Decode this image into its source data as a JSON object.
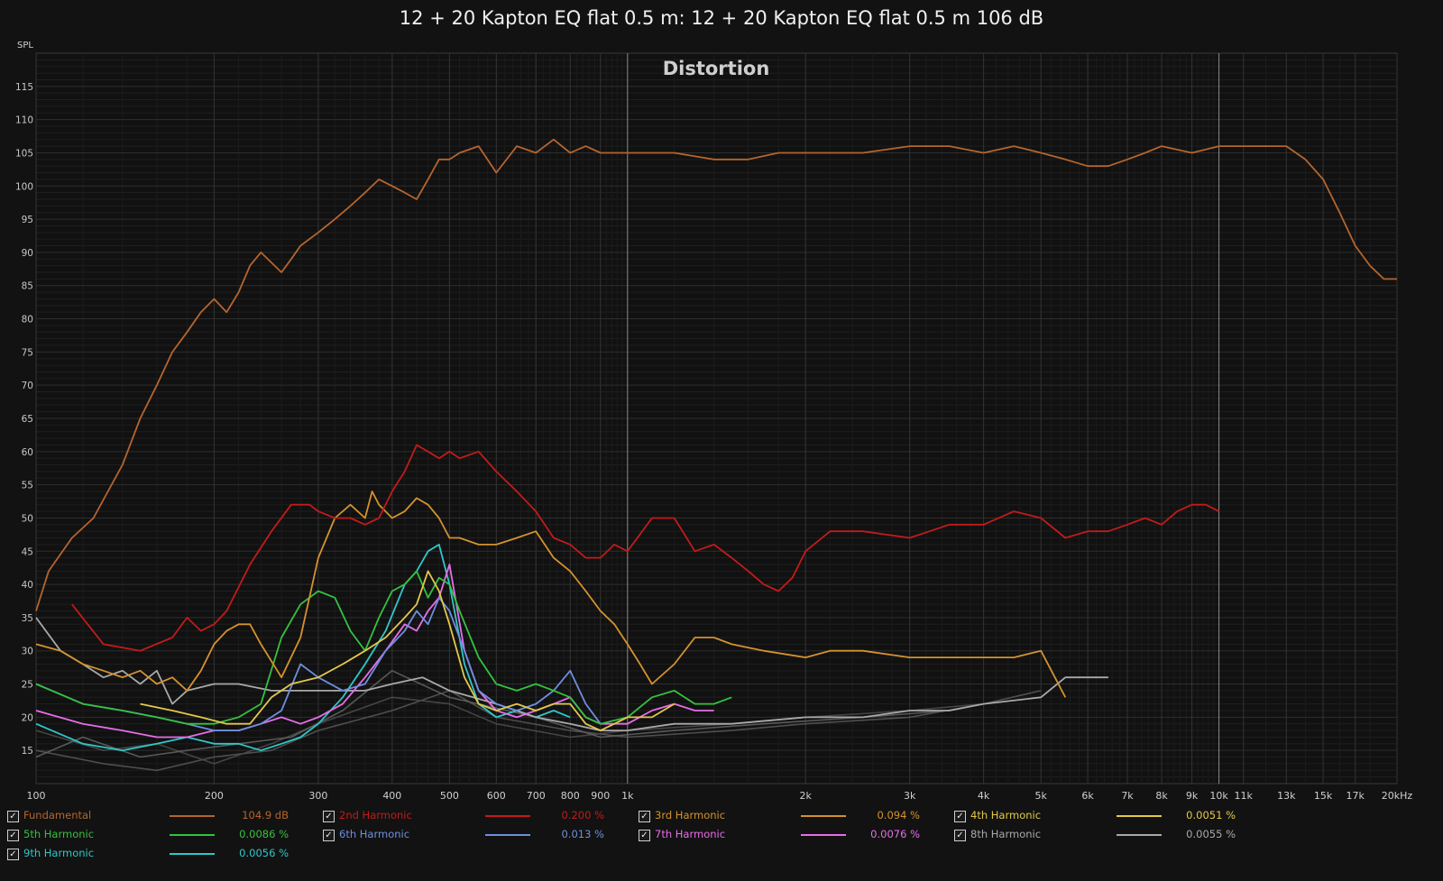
{
  "header": {
    "title": "12 + 20 Kapton EQ flat 0.5 m: 12 + 20 Kapton EQ flat 0.5 m 106 dB"
  },
  "chart_data": {
    "type": "line",
    "title": "Distortion",
    "ylabel": "SPL",
    "x_scale": "log",
    "xlim": [
      100,
      20000
    ],
    "ylim": [
      10,
      120
    ],
    "grid": true,
    "x_ticks": [
      {
        "v": 100,
        "label": "100"
      },
      {
        "v": 200,
        "label": "200"
      },
      {
        "v": 300,
        "label": "300"
      },
      {
        "v": 400,
        "label": "400"
      },
      {
        "v": 500,
        "label": "500"
      },
      {
        "v": 600,
        "label": "600"
      },
      {
        "v": 700,
        "label": "700"
      },
      {
        "v": 800,
        "label": "800"
      },
      {
        "v": 900,
        "label": "900"
      },
      {
        "v": 1000,
        "label": "1k"
      },
      {
        "v": 2000,
        "label": "2k"
      },
      {
        "v": 3000,
        "label": "3k"
      },
      {
        "v": 4000,
        "label": "4k"
      },
      {
        "v": 5000,
        "label": "5k"
      },
      {
        "v": 6000,
        "label": "6k"
      },
      {
        "v": 7000,
        "label": "7k"
      },
      {
        "v": 8000,
        "label": "8k"
      },
      {
        "v": 9000,
        "label": "9k"
      },
      {
        "v": 10000,
        "label": "10k"
      },
      {
        "v": 11000,
        "label": "11k"
      },
      {
        "v": 13000,
        "label": "13k"
      },
      {
        "v": 15000,
        "label": "15k"
      },
      {
        "v": 17000,
        "label": "17k"
      },
      {
        "v": 20000,
        "label": "20kHz"
      }
    ],
    "y_ticks": [
      15,
      20,
      25,
      30,
      35,
      40,
      45,
      50,
      55,
      60,
      65,
      70,
      75,
      80,
      85,
      90,
      95,
      100,
      105,
      110,
      115
    ],
    "series": [
      {
        "name": "Fundamental",
        "color": "#b5652e",
        "value": "104.9 dB",
        "x": [
          100,
          105,
          115,
          125,
          140,
          150,
          160,
          170,
          180,
          190,
          200,
          210,
          220,
          230,
          240,
          260,
          270,
          280,
          300,
          320,
          340,
          360,
          380,
          400,
          420,
          440,
          460,
          480,
          500,
          520,
          560,
          600,
          650,
          700,
          750,
          800,
          850,
          900,
          950,
          1000,
          1100,
          1200,
          1400,
          1600,
          1800,
          2000,
          2200,
          2500,
          3000,
          3500,
          4000,
          4500,
          5000,
          5500,
          6000,
          6500,
          7000,
          7500,
          8000,
          9000,
          10000,
          11000,
          12000,
          13000,
          14000,
          15000,
          16000,
          17000,
          18000,
          19000,
          20000
        ],
        "y": [
          36,
          42,
          47,
          50,
          58,
          65,
          70,
          75,
          78,
          81,
          83,
          81,
          84,
          88,
          90,
          87,
          89,
          91,
          93,
          95,
          97,
          99,
          101,
          100,
          99,
          98,
          101,
          104,
          104,
          105,
          106,
          102,
          106,
          105,
          107,
          105,
          106,
          105,
          105,
          105,
          105,
          105,
          104,
          104,
          105,
          105,
          105,
          105,
          106,
          106,
          105,
          106,
          105,
          104,
          103,
          103,
          104,
          105,
          106,
          105,
          106,
          106,
          106,
          106,
          104,
          101,
          96,
          91,
          88,
          86,
          86
        ]
      },
      {
        "name": "2nd Harmonic",
        "color": "#c21b1b",
        "value": "0.200 %",
        "x": [
          115,
          130,
          150,
          170,
          180,
          190,
          200,
          210,
          230,
          250,
          270,
          290,
          300,
          320,
          340,
          360,
          380,
          400,
          420,
          440,
          460,
          480,
          500,
          520,
          560,
          600,
          650,
          700,
          750,
          800,
          850,
          900,
          950,
          1000,
          1100,
          1200,
          1300,
          1400,
          1500,
          1600,
          1700,
          1800,
          1900,
          2000,
          2200,
          2500,
          3000,
          3500,
          4000,
          4500,
          5000,
          5500,
          6000,
          6500,
          7000,
          7500,
          8000,
          8500,
          9000,
          9500,
          10000
        ],
        "y": [
          37,
          31,
          30,
          32,
          35,
          33,
          34,
          36,
          43,
          48,
          52,
          52,
          51,
          50,
          50,
          49,
          50,
          54,
          57,
          61,
          60,
          59,
          60,
          59,
          60,
          57,
          54,
          51,
          47,
          46,
          44,
          44,
          46,
          45,
          50,
          50,
          45,
          46,
          44,
          42,
          40,
          39,
          41,
          45,
          48,
          48,
          47,
          49,
          49,
          51,
          50,
          47,
          48,
          48,
          49,
          50,
          49,
          51,
          52,
          52,
          51
        ]
      },
      {
        "name": "3rd Harmonic",
        "color": "#d4922e",
        "value": "0.094 %",
        "x": [
          100,
          110,
          120,
          130,
          140,
          150,
          160,
          170,
          180,
          190,
          200,
          210,
          220,
          230,
          240,
          260,
          280,
          300,
          320,
          340,
          360,
          370,
          380,
          400,
          420,
          440,
          460,
          480,
          500,
          520,
          560,
          600,
          650,
          700,
          750,
          800,
          850,
          900,
          950,
          1000,
          1050,
          1100,
          1200,
          1300,
          1400,
          1500,
          1700,
          2000,
          2200,
          2500,
          3000,
          3500,
          4000,
          4500,
          5000,
          5500
        ],
        "y": [
          31,
          30,
          28,
          27,
          26,
          27,
          25,
          26,
          24,
          27,
          31,
          33,
          34,
          34,
          31,
          26,
          32,
          44,
          50,
          52,
          50,
          54,
          52,
          50,
          51,
          53,
          52,
          50,
          47,
          47,
          46,
          46,
          47,
          48,
          44,
          42,
          39,
          36,
          34,
          31,
          28,
          25,
          28,
          32,
          32,
          31,
          30,
          29,
          30,
          30,
          29,
          29,
          29,
          29,
          30,
          23
        ]
      },
      {
        "name": "4th Harmonic",
        "color": "#e3c84a",
        "value": "0.0051 %",
        "x": [
          150,
          170,
          190,
          210,
          230,
          250,
          270,
          300,
          330,
          360,
          390,
          420,
          440,
          460,
          480,
          500,
          530,
          560,
          600,
          650,
          700,
          750,
          800,
          850,
          900,
          950,
          1000,
          1100,
          1200
        ],
        "y": [
          22,
          21,
          20,
          19,
          19,
          23,
          25,
          26,
          28,
          30,
          32,
          35,
          37,
          42,
          39,
          34,
          26,
          22,
          21,
          22,
          21,
          22,
          22,
          19,
          18,
          19,
          20,
          20,
          22
        ]
      },
      {
        "name": "5th Harmonic",
        "color": "#34c23e",
        "value": "0.0086 %",
        "x": [
          100,
          120,
          140,
          160,
          180,
          200,
          220,
          240,
          260,
          280,
          300,
          320,
          340,
          360,
          380,
          400,
          420,
          440,
          460,
          480,
          500,
          520,
          560,
          600,
          650,
          700,
          750,
          800,
          850,
          900,
          1000,
          1100,
          1200,
          1300,
          1400,
          1500
        ],
        "y": [
          25,
          22,
          21,
          20,
          19,
          19,
          20,
          22,
          32,
          37,
          39,
          38,
          33,
          30,
          35,
          39,
          40,
          42,
          38,
          41,
          40,
          36,
          29,
          25,
          24,
          25,
          24,
          23,
          20,
          19,
          20,
          23,
          24,
          22,
          22,
          23
        ]
      },
      {
        "name": "6th Harmonic",
        "color": "#6d8fe0",
        "value": "0.013 %",
        "x": [
          100,
          120,
          140,
          160,
          180,
          200,
          220,
          240,
          260,
          280,
          300,
          330,
          360,
          390,
          420,
          440,
          460,
          480,
          500,
          530,
          560,
          600,
          650,
          700,
          750,
          800,
          850,
          900
        ],
        "y": [
          25,
          22,
          21,
          20,
          19,
          18,
          18,
          19,
          21,
          28,
          26,
          24,
          25,
          30,
          33,
          36,
          34,
          38,
          36,
          30,
          24,
          22,
          21,
          22,
          24,
          27,
          22,
          19
        ]
      },
      {
        "name": "7th Harmonic",
        "color": "#e86de8",
        "value": "0.0076 %",
        "x": [
          100,
          120,
          140,
          160,
          180,
          200,
          220,
          240,
          260,
          280,
          300,
          330,
          360,
          390,
          420,
          440,
          460,
          480,
          500,
          530,
          560,
          600,
          650,
          700,
          750,
          800,
          850,
          900,
          1000,
          1100,
          1200,
          1300,
          1400
        ],
        "y": [
          21,
          19,
          18,
          17,
          17,
          18,
          18,
          19,
          20,
          19,
          20,
          22,
          26,
          30,
          34,
          33,
          36,
          38,
          43,
          30,
          24,
          21,
          20,
          21,
          22,
          23,
          20,
          19,
          19,
          21,
          22,
          21,
          21
        ]
      },
      {
        "name": "8th Harmonic",
        "color": "#a9a9a9",
        "value": "0.0055 %",
        "x": [
          100,
          110,
          120,
          130,
          140,
          150,
          160,
          170,
          180,
          200,
          220,
          250,
          280,
          300,
          330,
          360,
          400,
          450,
          500,
          600,
          700,
          800,
          900,
          1000,
          1200,
          1500,
          2000,
          2500,
          3000,
          3500,
          4000,
          5000,
          5500,
          6000,
          6500
        ],
        "y": [
          35,
          30,
          28,
          26,
          27,
          25,
          27,
          22,
          24,
          25,
          25,
          24,
          24,
          24,
          24,
          24,
          25,
          26,
          24,
          22,
          20,
          19,
          18,
          18,
          19,
          19,
          20,
          20,
          21,
          21,
          22,
          23,
          26,
          26,
          26
        ]
      },
      {
        "name": "9th Harmonic",
        "color": "#2fc8c8",
        "value": "0.0056 %",
        "x": [
          100,
          120,
          140,
          160,
          180,
          200,
          220,
          240,
          260,
          280,
          300,
          330,
          360,
          390,
          420,
          440,
          460,
          480,
          500,
          530,
          560,
          600,
          650,
          700,
          750,
          800
        ],
        "y": [
          19,
          16,
          15,
          16,
          17,
          16,
          16,
          15,
          16,
          17,
          19,
          23,
          28,
          33,
          40,
          42,
          45,
          46,
          40,
          28,
          22,
          20,
          21,
          20,
          21,
          20
        ]
      }
    ],
    "background_traces": [
      {
        "color": "#555555",
        "x": [
          100,
          130,
          160,
          200,
          250,
          300,
          400,
          500,
          600,
          800,
          1000,
          1500,
          2000,
          3000,
          4000,
          5000
        ],
        "y": [
          15,
          13,
          12,
          14,
          15,
          18,
          21,
          24,
          20,
          18,
          17,
          18,
          19,
          20,
          22,
          24
        ]
      },
      {
        "color": "#4a4a4a",
        "x": [
          100,
          130,
          160,
          200,
          250,
          300,
          400,
          500,
          600,
          800,
          1000,
          1500,
          2000,
          3000,
          4000
        ],
        "y": [
          18,
          15,
          16,
          13,
          16,
          19,
          23,
          22,
          19,
          17,
          18,
          19,
          20,
          21,
          22
        ]
      },
      {
        "color": "#606060",
        "x": [
          100,
          120,
          150,
          180,
          220,
          270,
          330,
          400,
          500,
          700,
          900,
          1200,
          1700,
          2500,
          3500
        ],
        "y": [
          14,
          17,
          14,
          15,
          16,
          17,
          21,
          27,
          23,
          20,
          17,
          18,
          19,
          20,
          21
        ]
      }
    ]
  }
}
